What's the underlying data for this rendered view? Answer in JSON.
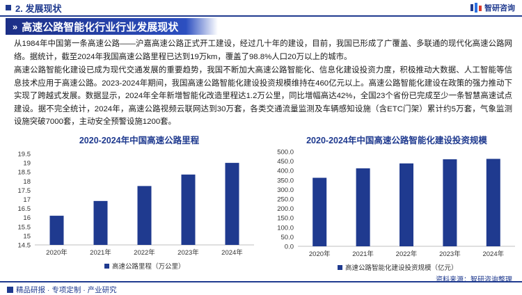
{
  "header": {
    "section_title": "2. 发展现状",
    "logo_text": "智研咨询",
    "logo_icon": "zhiyan-logo-icon"
  },
  "banner": {
    "title": "高速公路智能化行业行业发展现状"
  },
  "paragraphs": [
    "从1984年中国第一条高速公路——沪嘉高速公路正式开工建设，经过几十年的建设，目前，我国已形成了广覆盖、多联通的现代化高速公路网络。据统计，截至2024年我国高速公路里程已达到19万km，覆盖了98.8%人口20万以上的城市。",
    "高速公路智能化建设已成为现代交通发展的重要趋势，我国不断加大高速公路智能化、信息化建设投资力度，积极推动大数据、人工智能等信息技术应用于高速公路。2023-2024年期间，我国高速公路智能化建设投资规模维持在460亿元以上。高速公路智能化建设在政策的强力推动下实现了跨越式发展。数据显示，2024年全年新增智能化改造里程达1.2万公里，同比增幅高达42%，全国23个省份已完成至少一条智慧高速试点建设。据不完全统计，2024年，高速公路视频云联网达到30万套，各类交通流量监测及车辆感知设施（含ETC门架）累计约5万套，气象监测设施突破7000套，主动安全预警设施1200套。"
  ],
  "chart_data": [
    {
      "type": "bar",
      "title": "2020-2024年中国高速公路里程",
      "categories": [
        "2020年",
        "2021年",
        "2022年",
        "2023年",
        "2024年"
      ],
      "series": [
        {
          "name": "高速公路里程（万公里）",
          "values": [
            16.1,
            16.91,
            17.73,
            18.36,
            19.0
          ]
        }
      ],
      "ylim": [
        14.5,
        19.5
      ],
      "yticks": [
        "14.5",
        "15",
        "15.5",
        "16",
        "16.5",
        "17",
        "17.5",
        "18",
        "18.5",
        "19",
        "19.5"
      ],
      "grid": false,
      "legend": "bottom",
      "bar_color": "#1f3a8f"
    },
    {
      "type": "bar",
      "title": "2020-2024年中国高速公路智能化建设投资规模",
      "categories": [
        "2020年",
        "2021年",
        "2022年",
        "2023年",
        "2024年"
      ],
      "series": [
        {
          "name": "高速公路智能化建设投资规模（亿元）",
          "values": [
            362,
            412,
            438,
            460,
            462
          ]
        }
      ],
      "ylim": [
        0,
        500
      ],
      "yticks": [
        "0.0",
        "50.0",
        "100.0",
        "150.0",
        "200.0",
        "250.0",
        "300.0",
        "350.0",
        "400.0",
        "450.0",
        "500.0"
      ],
      "grid": false,
      "legend": "bottom",
      "bar_color": "#1f3a8f"
    }
  ],
  "footer": {
    "left_text": "精品研报 · 专项定制 · 产业研究",
    "source": "资料来源：智研咨询整理"
  }
}
